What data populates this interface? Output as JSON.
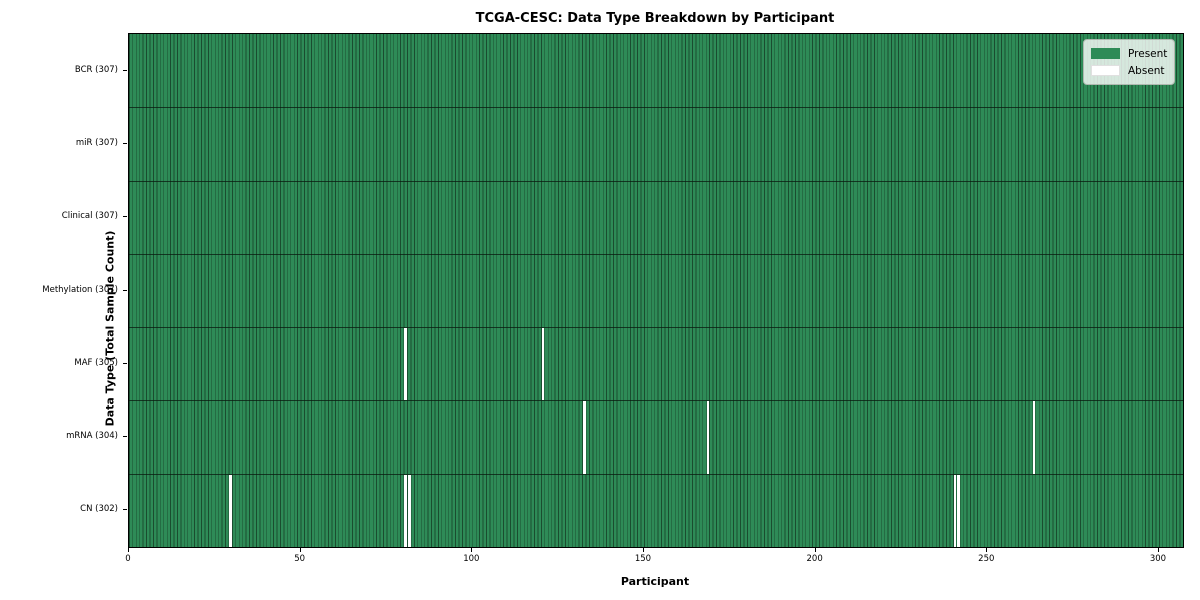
{
  "chart_data": {
    "type": "heatmap",
    "title": "TCGA-CESC: Data Type Breakdown by Participant",
    "xlabel": "Participant",
    "ylabel": "Data Type (Total Sample Count)",
    "n_participants": 307,
    "x_ticks": [
      0,
      50,
      100,
      150,
      200,
      250,
      300
    ],
    "legend": [
      {
        "label": "Present",
        "color": "#2e8b57"
      },
      {
        "label": "Absent",
        "color": "#ffffff"
      }
    ],
    "colors": {
      "present": "#2e8b57",
      "absent": "#ffffff",
      "cell_edge": "rgba(10,25,15,0.55)"
    },
    "rows": [
      {
        "label": "BCR (307)",
        "data_type": "BCR",
        "present_count": 307,
        "absent_participants": []
      },
      {
        "label": "miR (307)",
        "data_type": "miR",
        "present_count": 307,
        "absent_participants": []
      },
      {
        "label": "Clinical (307)",
        "data_type": "Clinical",
        "present_count": 307,
        "absent_participants": []
      },
      {
        "label": "Methylation (307)",
        "data_type": "Methylation",
        "present_count": 307,
        "absent_participants": []
      },
      {
        "label": "MAF (305)",
        "data_type": "MAF",
        "present_count": 305,
        "absent_participants": [
          80,
          120
        ]
      },
      {
        "label": "mRNA (304)",
        "data_type": "mRNA",
        "present_count": 304,
        "absent_participants": [
          132,
          168,
          263
        ]
      },
      {
        "label": "CN (302)",
        "data_type": "CN",
        "present_count": 302,
        "absent_participants": [
          29,
          80,
          81,
          240,
          241
        ]
      }
    ],
    "layout": {
      "grid": "per-cell vertical edges",
      "legend_position": "upper right"
    }
  }
}
